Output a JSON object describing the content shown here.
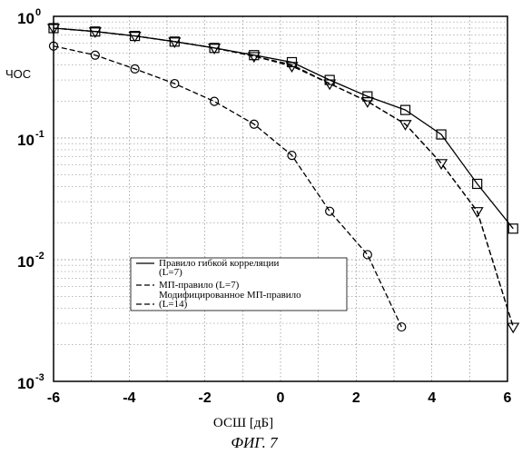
{
  "chart_data": {
    "type": "line",
    "ylabel": "ЧОС",
    "xlabel": "ОСШ [дБ]",
    "caption": "ФИГ. 7",
    "xlim": [
      -6,
      6
    ],
    "ylim": [
      0.001,
      1
    ],
    "yscale": "log",
    "x_ticks": [
      "-6",
      "-4",
      "-2",
      "0",
      "2",
      "4",
      "6"
    ],
    "y_ticks": [
      {
        "base": "10",
        "exp": "0"
      },
      {
        "base": "10",
        "exp": "-1"
      },
      {
        "base": "10",
        "exp": "-2"
      },
      {
        "base": "10",
        "exp": "-3"
      }
    ],
    "grid": true,
    "legend_position": "lower-left",
    "series": [
      {
        "name": "Правило гибкой корреляции (L=7)",
        "line": "solid",
        "marker": "square",
        "x": [
          -6,
          -4.9,
          -3.85,
          -2.8,
          -1.75,
          -0.7,
          0.3,
          1.3,
          2.3,
          3.3,
          4.25,
          5.2,
          6.15
        ],
        "y": [
          0.8,
          0.75,
          0.69,
          0.62,
          0.55,
          0.48,
          0.42,
          0.3,
          0.22,
          0.17,
          0.107,
          0.042,
          0.018
        ]
      },
      {
        "name": "МП-правило (L=7)",
        "line": "dashed",
        "marker": "none",
        "x": [
          -6,
          -4.9,
          -3.85,
          -2.8,
          -1.75,
          -0.7,
          0.3,
          1.3,
          2.3,
          3.3,
          4.25,
          5.2,
          6.15
        ],
        "y": [
          0.8,
          0.75,
          0.69,
          0.62,
          0.55,
          0.47,
          0.4,
          0.28,
          0.2,
          0.13,
          0.062,
          0.025,
          0.0028
        ]
      },
      {
        "name": "Модифицированное МП-правило (L=14)",
        "line": "dashed",
        "marker": "triangle-down",
        "x": [
          -6,
          -4.9,
          -3.85,
          -2.8,
          -1.75,
          -0.7,
          0.3,
          1.3,
          2.3,
          3.3,
          4.25,
          5.2,
          6.15
        ],
        "y": [
          0.8,
          0.75,
          0.69,
          0.62,
          0.55,
          0.47,
          0.39,
          0.28,
          0.2,
          0.13,
          0.062,
          0.025,
          0.0028
        ]
      },
      {
        "name": "",
        "line": "dashed",
        "marker": "circle",
        "x": [
          -6,
          -4.9,
          -3.85,
          -2.8,
          -1.75,
          -0.7,
          0.3,
          1.3,
          2.3,
          3.2
        ],
        "y": [
          0.57,
          0.48,
          0.37,
          0.28,
          0.2,
          0.13,
          0.072,
          0.025,
          0.011,
          0.0028
        ]
      }
    ],
    "legend": [
      {
        "text": "Правило гибкой корреляции",
        "text2": "(L=7)",
        "line": "solid"
      },
      {
        "text": "МП-правило (L=7)",
        "text2": "",
        "line": "dashed"
      },
      {
        "text": "Модифицированное МП-правило",
        "text2": "(L=14)",
        "line": "dashed"
      }
    ]
  }
}
